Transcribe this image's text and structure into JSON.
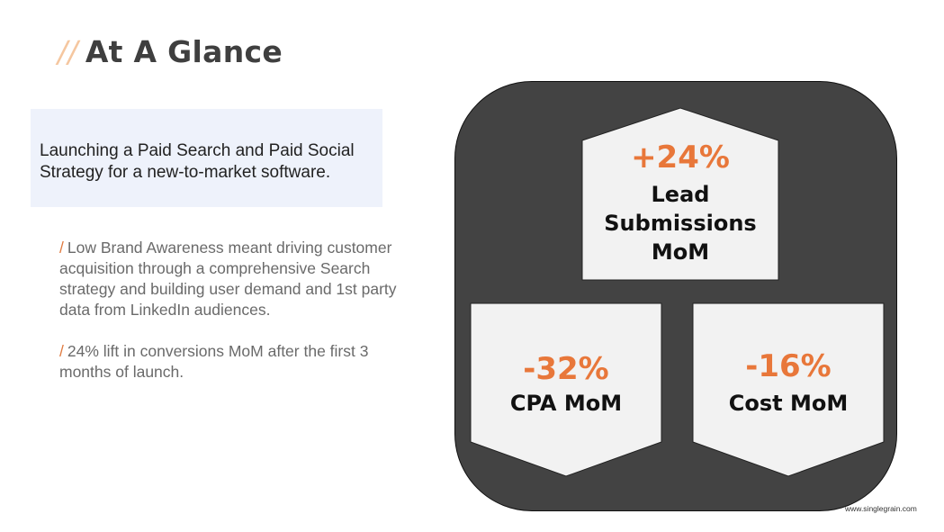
{
  "slide": {
    "title_prefix": "//",
    "title": "At A Glance",
    "intro": "Launching a Paid Search and Paid Social Strategy for a new-to-market software.",
    "bullets": [
      {
        "mark": "/",
        "text": "Low Brand Awareness meant driving customer acquisition through a comprehensive Search strategy and building user demand and 1st party data from LinkedIn audiences."
      },
      {
        "mark": "/",
        "text": "24% lift in conversions MoM after the first 3 months of launch."
      }
    ],
    "stats": [
      {
        "value": "+24%",
        "label_lines": [
          "Lead",
          "Submissions",
          "MoM"
        ]
      },
      {
        "value": "-32%",
        "label_lines": [
          "CPA MoM"
        ]
      },
      {
        "value": "-16%",
        "label_lines": [
          "Cost MoM"
        ]
      }
    ],
    "footer": "www.singlegrain.com",
    "colors": {
      "accent": "#e8773a",
      "panel": "#434343",
      "shape_fill": "#f2f2f2",
      "intro_bg": "#eef2fb"
    }
  }
}
